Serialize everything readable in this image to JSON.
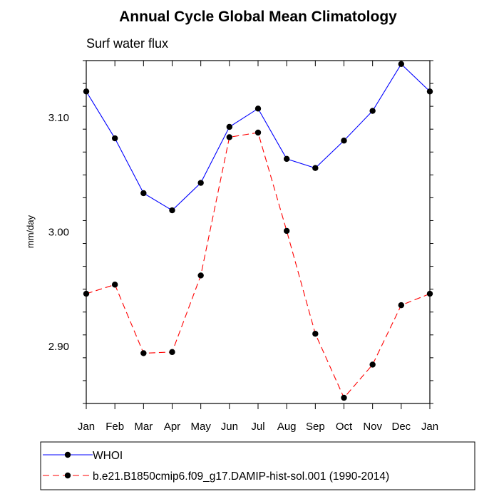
{
  "chart_data": {
    "type": "line",
    "title": "Annual Cycle Global Mean Climatology",
    "subtitle": "Surf water flux",
    "xlabel": "",
    "ylabel": "mm/day",
    "categories": [
      "Jan",
      "Feb",
      "Mar",
      "Apr",
      "May",
      "Jun",
      "Jul",
      "Aug",
      "Sep",
      "Oct",
      "Nov",
      "Dec",
      "Jan"
    ],
    "ylim": [
      2.85,
      3.15
    ],
    "y_tick_labels": [
      "2.90",
      "3.00",
      "3.10"
    ],
    "y_tick_values": [
      2.9,
      3.0,
      3.1
    ],
    "grid": false,
    "legend_position": "bottom",
    "series": [
      {
        "name": "WHOI",
        "color": "#0000ff",
        "line_style": "solid",
        "marker": "filled-circle",
        "values": [
          3.123,
          3.082,
          3.034,
          3.019,
          3.043,
          3.092,
          3.108,
          3.064,
          3.056,
          3.08,
          3.106,
          3.147,
          3.123
        ]
      },
      {
        "name": "b.e21.B1850cmip6.f09_g17.DAMIP-hist-sol.001 (1990-2014)",
        "color": "#ff0000",
        "line_style": "dashed",
        "marker": "filled-circle",
        "values": [
          2.946,
          2.954,
          2.894,
          2.895,
          2.962,
          3.083,
          3.087,
          3.001,
          2.911,
          2.855,
          2.884,
          2.936,
          2.946
        ]
      }
    ]
  }
}
